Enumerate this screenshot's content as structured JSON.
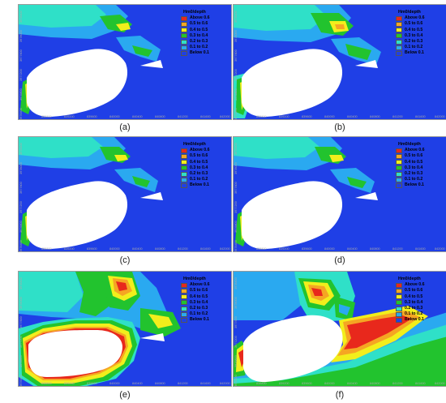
{
  "legend": {
    "title": "Hm0/depth",
    "items": [
      {
        "label": "Above 0.6",
        "color": "#e8281c"
      },
      {
        "label": "0.5 to 0.6",
        "color": "#f5a623"
      },
      {
        "label": "0.4 to 0.5",
        "color": "#f2ee1c"
      },
      {
        "label": "0.3 to 0.4",
        "color": "#22c32e"
      },
      {
        "label": "0.2 to 0.3",
        "color": "#2fe0c8"
      },
      {
        "label": "0.1 to 0.2",
        "color": "#2aa9f0"
      },
      {
        "label": "Below 0.1",
        "color": "#1f3fe6"
      }
    ]
  },
  "y_ticks": [
    "3978400",
    "3978000",
    "3977600",
    "3977200",
    "3976800",
    "3976400"
  ],
  "x_ticks": [
    "838800",
    "839200",
    "839600",
    "840000",
    "840400",
    "840800",
    "841200",
    "841600",
    "842000"
  ],
  "panels": [
    {
      "caption": "(a)"
    },
    {
      "caption": "(b)"
    },
    {
      "caption": "(c)"
    },
    {
      "caption": "(d)"
    },
    {
      "caption": "(e)"
    },
    {
      "caption": "(f)"
    }
  ],
  "colors": {
    "deep_water": "#1f3fe6",
    "land": "#ffffff"
  }
}
